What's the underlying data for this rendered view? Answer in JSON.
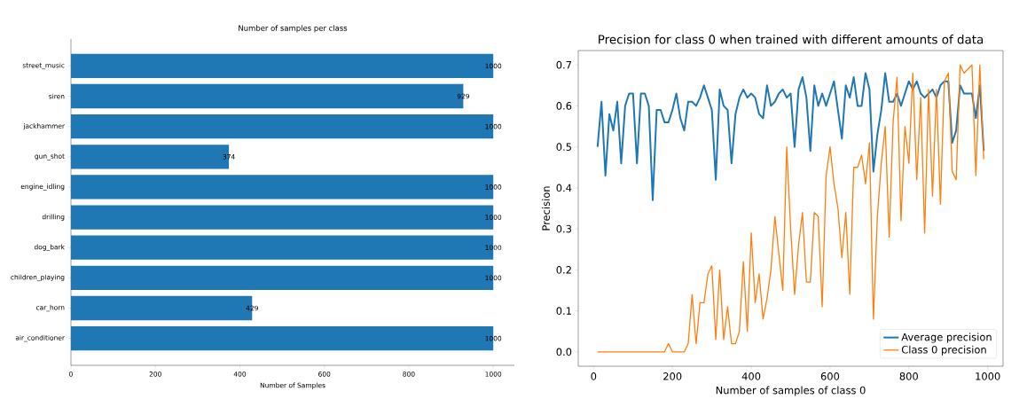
{
  "chart_data": [
    {
      "type": "bar",
      "orientation": "horizontal",
      "title": "Number of samples per class",
      "xlabel": "Number of Samples",
      "categories": [
        "street_music",
        "siren",
        "jackhammer",
        "gun_shot",
        "engine_idling",
        "drilling",
        "dog_bark",
        "children_playing",
        "car_horn",
        "air_conditioner"
      ],
      "values": [
        1000,
        929,
        1000,
        374,
        1000,
        1000,
        1000,
        1000,
        429,
        1000
      ],
      "color": "#1f77b4",
      "data_labels": true,
      "xlim": [
        0,
        1050
      ],
      "xticks": [
        0,
        200,
        400,
        600,
        800,
        1000
      ]
    },
    {
      "type": "line",
      "title": "Precision for class 0 when trained with different amounts of data",
      "xlabel": "Number of samples of class 0",
      "ylabel": "Precision",
      "x": [
        10,
        20,
        30,
        40,
        50,
        60,
        70,
        80,
        90,
        100,
        110,
        120,
        130,
        140,
        150,
        160,
        170,
        180,
        190,
        200,
        210,
        220,
        230,
        240,
        250,
        260,
        270,
        280,
        290,
        300,
        310,
        320,
        330,
        340,
        350,
        360,
        370,
        380,
        390,
        400,
        410,
        420,
        430,
        440,
        450,
        460,
        470,
        480,
        490,
        500,
        510,
        520,
        530,
        540,
        550,
        560,
        570,
        580,
        590,
        600,
        610,
        620,
        630,
        640,
        650,
        660,
        670,
        680,
        690,
        700,
        710,
        720,
        730,
        740,
        750,
        760,
        770,
        780,
        790,
        800,
        810,
        820,
        830,
        840,
        850,
        860,
        870,
        880,
        890,
        900,
        910,
        920,
        930,
        940,
        950,
        960,
        970,
        980,
        990
      ],
      "series": [
        {
          "name": "Average precision",
          "color": "#1f77b4",
          "values": [
            0.5,
            0.61,
            0.43,
            0.58,
            0.54,
            0.61,
            0.46,
            0.6,
            0.63,
            0.63,
            0.46,
            0.63,
            0.63,
            0.6,
            0.37,
            0.59,
            0.59,
            0.56,
            0.56,
            0.59,
            0.63,
            0.57,
            0.54,
            0.61,
            0.61,
            0.6,
            0.62,
            0.65,
            0.62,
            0.59,
            0.42,
            0.64,
            0.6,
            0.59,
            0.46,
            0.58,
            0.62,
            0.64,
            0.62,
            0.63,
            0.62,
            0.58,
            0.57,
            0.65,
            0.6,
            0.61,
            0.63,
            0.64,
            0.62,
            0.63,
            0.5,
            0.64,
            0.67,
            0.62,
            0.49,
            0.65,
            0.6,
            0.63,
            0.6,
            0.63,
            0.66,
            0.59,
            0.52,
            0.65,
            0.62,
            0.67,
            0.6,
            0.6,
            0.68,
            0.64,
            0.44,
            0.53,
            0.59,
            0.68,
            0.61,
            0.61,
            0.63,
            0.6,
            0.63,
            0.66,
            0.64,
            0.66,
            0.63,
            0.62,
            0.63,
            0.64,
            0.62,
            0.65,
            0.66,
            0.66,
            0.51,
            0.54,
            0.65,
            0.63,
            0.63,
            0.63,
            0.57,
            0.65,
            0.49
          ]
        },
        {
          "name": "Class 0 precision",
          "color": "#ff7f0e",
          "values": [
            0,
            0,
            0,
            0,
            0,
            0,
            0,
            0,
            0,
            0,
            0,
            0,
            0,
            0,
            0,
            0,
            0,
            0,
            0.02,
            0,
            0,
            0,
            0,
            0.02,
            0.14,
            0.02,
            0.12,
            0.12,
            0.19,
            0.21,
            0.03,
            0.2,
            0.03,
            0.11,
            0.02,
            0.02,
            0.05,
            0.22,
            0.05,
            0.29,
            0.12,
            0.19,
            0.08,
            0.13,
            0.2,
            0.33,
            0.24,
            0.15,
            0.5,
            0.3,
            0.14,
            0.26,
            0.34,
            0.17,
            0.17,
            0.34,
            0.33,
            0.11,
            0.43,
            0.5,
            0.41,
            0.35,
            0.23,
            0.34,
            0.14,
            0.45,
            0.45,
            0.48,
            0.41,
            0.51,
            0.08,
            0.33,
            0.46,
            0.55,
            0.28,
            0.56,
            0.67,
            0.32,
            0.55,
            0.46,
            0.68,
            0.42,
            0.62,
            0.29,
            0.64,
            0.38,
            0.64,
            0.36,
            0.66,
            0.68,
            0.44,
            0.42,
            0.7,
            0.68,
            0.69,
            0.7,
            0.43,
            0.7,
            0.47
          ]
        }
      ],
      "legend": "bottom right",
      "xlim": [
        -39,
        1039
      ],
      "xticks": [
        0,
        200,
        400,
        600,
        800,
        1000
      ],
      "ylim": [
        -0.035,
        0.735
      ],
      "yticks": [
        {
          "value": 0,
          "label": "0.0"
        },
        {
          "value": 0.1,
          "label": "0.1"
        },
        {
          "value": 0.2,
          "label": "0.2"
        },
        {
          "value": 0.3,
          "label": "0.3"
        },
        {
          "value": 0.4,
          "label": "0.4"
        },
        {
          "value": 0.5,
          "label": "0.5"
        },
        {
          "value": 0.6,
          "label": "0.6"
        },
        {
          "value": 0.7,
          "label": "0.7"
        }
      ]
    }
  ]
}
